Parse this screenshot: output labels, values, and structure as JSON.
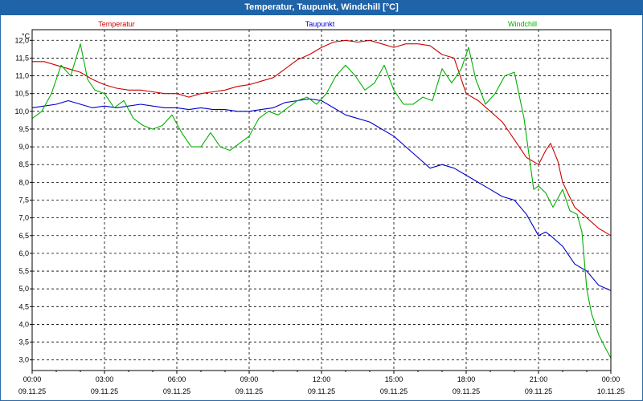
{
  "title": "Temperatur, Taupunkt, Windchill [°C]",
  "chart_data": {
    "type": "line",
    "title": "Temperatur, Taupunkt, Windchill [°C]",
    "ylabel": "°C",
    "ylim": [
      2.7,
      12.3
    ],
    "xlim": [
      0,
      24
    ],
    "y_ticks": [
      "3,0",
      "3,5",
      "4,0",
      "4,5",
      "5,0",
      "5,5",
      "6,0",
      "6,5",
      "7,0",
      "7,5",
      "8,0",
      "8,5",
      "9,0",
      "9,5",
      "10,0",
      "10,5",
      "11,0",
      "11,5",
      "12,0"
    ],
    "y_tick_values": [
      3.0,
      3.5,
      4.0,
      4.5,
      5.0,
      5.5,
      6.0,
      6.5,
      7.0,
      7.5,
      8.0,
      8.5,
      9.0,
      9.5,
      10.0,
      10.5,
      11.0,
      11.5,
      12.0
    ],
    "x_tick_values": [
      0,
      3,
      6,
      9,
      12,
      15,
      18,
      21,
      24
    ],
    "x_ticks": [
      {
        "time": "00:00",
        "date": "09.11.25"
      },
      {
        "time": "03:00",
        "date": "09.11.25"
      },
      {
        "time": "06:00",
        "date": "09.11.25"
      },
      {
        "time": "09:00",
        "date": "09.11.25"
      },
      {
        "time": "12:00",
        "date": "09.11.25"
      },
      {
        "time": "15:00",
        "date": "09.11.25"
      },
      {
        "time": "18:00",
        "date": "09.11.25"
      },
      {
        "time": "21:00",
        "date": "09.11.25"
      },
      {
        "time": "00:00",
        "date": "10.11.25"
      }
    ],
    "grid": true,
    "series": [
      {
        "name": "Temperatur",
        "color": "#cc0000",
        "x": [
          0,
          0.5,
          1,
          1.5,
          2,
          2.5,
          3,
          3.5,
          4,
          4.5,
          5,
          5.5,
          6,
          6.5,
          7,
          7.5,
          8,
          8.5,
          9,
          9.5,
          10,
          10.5,
          11,
          11.5,
          12,
          12.5,
          13,
          13.5,
          14,
          14.5,
          15,
          15.5,
          16,
          16.5,
          17,
          17.5,
          18,
          18.5,
          19,
          19.5,
          20,
          20.5,
          21,
          21.3,
          21.5,
          21.8,
          22,
          22.5,
          23,
          23.5,
          24
        ],
        "values": [
          11.4,
          11.4,
          11.3,
          11.2,
          11.1,
          10.9,
          10.75,
          10.65,
          10.6,
          10.6,
          10.55,
          10.5,
          10.5,
          10.4,
          10.5,
          10.55,
          10.6,
          10.7,
          10.75,
          10.85,
          10.95,
          11.2,
          11.45,
          11.6,
          11.8,
          11.95,
          12.0,
          11.95,
          12.0,
          11.9,
          11.8,
          11.9,
          11.9,
          11.85,
          11.6,
          11.5,
          10.5,
          10.3,
          10.0,
          9.7,
          9.2,
          8.7,
          8.5,
          8.9,
          9.1,
          8.6,
          8.0,
          7.3,
          7.0,
          6.7,
          6.5
        ]
      },
      {
        "name": "Taupunkt",
        "color": "#0000cc",
        "x": [
          0,
          0.5,
          1,
          1.5,
          2,
          2.5,
          3,
          3.5,
          4,
          4.5,
          5,
          5.5,
          6,
          6.5,
          7,
          7.5,
          8,
          8.5,
          9,
          9.5,
          10,
          10.5,
          11,
          11.5,
          12,
          12.5,
          13,
          13.5,
          14,
          14.5,
          15,
          15.5,
          16,
          16.5,
          17,
          17.5,
          18,
          18.5,
          19,
          19.5,
          20,
          20.5,
          21,
          21.3,
          21.5,
          22,
          22.5,
          23,
          23.5,
          24
        ],
        "values": [
          10.1,
          10.15,
          10.2,
          10.3,
          10.2,
          10.1,
          10.15,
          10.1,
          10.15,
          10.2,
          10.15,
          10.1,
          10.1,
          10.05,
          10.1,
          10.05,
          10.05,
          10.0,
          10.0,
          10.05,
          10.1,
          10.25,
          10.3,
          10.35,
          10.3,
          10.1,
          9.9,
          9.8,
          9.7,
          9.5,
          9.3,
          9.0,
          8.7,
          8.4,
          8.5,
          8.4,
          8.2,
          8.0,
          7.8,
          7.6,
          7.5,
          7.1,
          6.5,
          6.6,
          6.5,
          6.2,
          5.7,
          5.5,
          5.1,
          4.95
        ]
      },
      {
        "name": "Windchill",
        "color": "#00b000",
        "x": [
          0,
          0.4,
          0.8,
          1.2,
          1.6,
          2,
          2.3,
          2.6,
          3,
          3.4,
          3.8,
          4.2,
          4.6,
          5,
          5.4,
          5.8,
          6.2,
          6.6,
          7,
          7.4,
          7.8,
          8.2,
          8.6,
          9,
          9.4,
          9.8,
          10.2,
          10.6,
          11,
          11.4,
          11.8,
          12.2,
          12.6,
          13,
          13.4,
          13.8,
          14.2,
          14.6,
          15,
          15.4,
          15.8,
          16.2,
          16.6,
          17,
          17.4,
          17.8,
          18.1,
          18.4,
          18.8,
          19.2,
          19.6,
          20,
          20.4,
          20.8,
          21,
          21.3,
          21.6,
          22,
          22.3,
          22.6,
          22.8,
          23,
          23.2,
          23.5,
          23.8,
          24
        ],
        "values": [
          9.8,
          10.0,
          10.5,
          11.3,
          11.0,
          11.9,
          10.9,
          10.6,
          10.5,
          10.1,
          10.3,
          9.8,
          9.6,
          9.5,
          9.6,
          9.9,
          9.4,
          9.0,
          9.0,
          9.4,
          9.0,
          8.9,
          9.1,
          9.3,
          9.8,
          10.0,
          9.9,
          10.1,
          10.3,
          10.4,
          10.2,
          10.5,
          11.0,
          11.3,
          11.0,
          10.6,
          10.8,
          11.3,
          10.6,
          10.2,
          10.2,
          10.4,
          10.3,
          11.2,
          10.8,
          11.2,
          11.8,
          10.9,
          10.2,
          10.5,
          11.0,
          11.1,
          9.8,
          7.8,
          7.9,
          7.7,
          7.3,
          7.8,
          7.2,
          7.1,
          6.6,
          5.0,
          4.3,
          3.7,
          3.3,
          3.05
        ]
      }
    ]
  }
}
